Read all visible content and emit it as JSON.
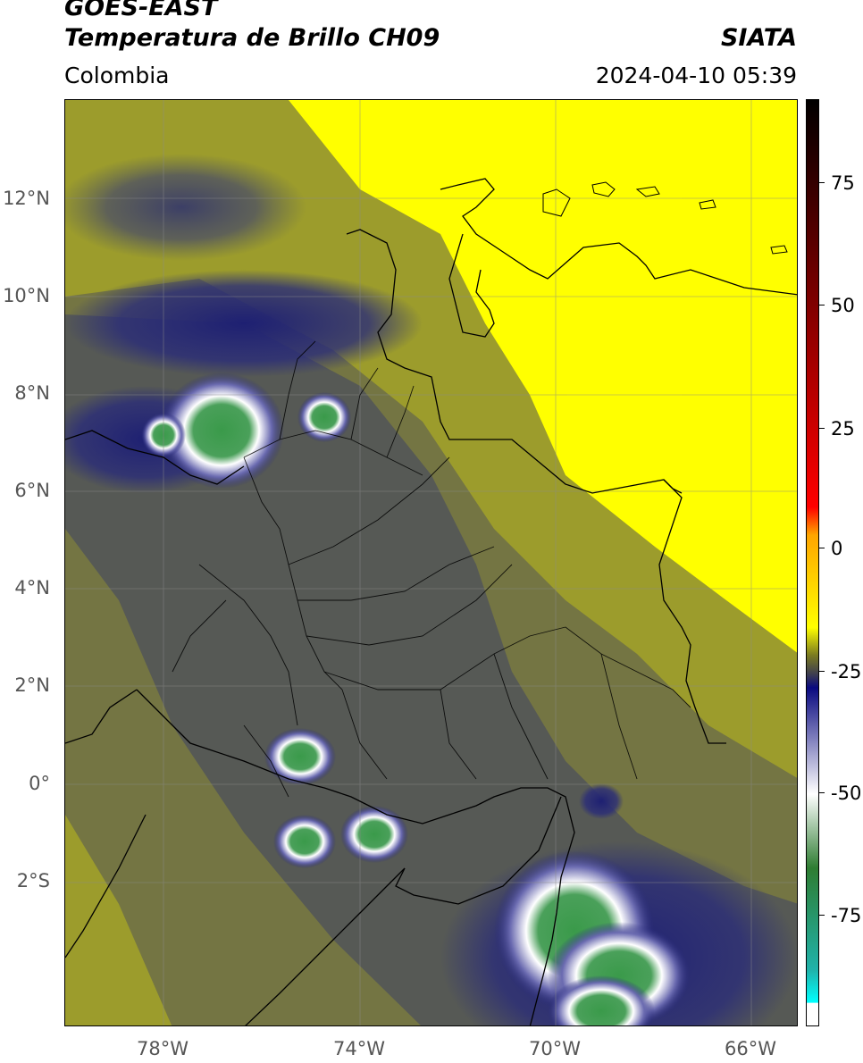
{
  "header": {
    "line1": "GOES-EAST",
    "line2": "Temperatura de Brillo CH09",
    "brand": "SIATA",
    "region": "Colombia",
    "datetime": "2024-04-10 05:39"
  },
  "map": {
    "lat_labels": [
      "12°N",
      "10°N",
      "8°N",
      "6°N",
      "4°N",
      "2°N",
      "0°",
      "2°S"
    ],
    "lon_labels": [
      "78°W",
      "74°W",
      "70°W",
      "66°W"
    ],
    "colors": {
      "warm": "#ffff00",
      "mid": "#a3a52a",
      "cool": "#5a5f55",
      "cold": "#26287a",
      "very_cold": "#ffffff",
      "coldest": "#3a9a4a"
    }
  },
  "colorbar": {
    "labels": [
      "75",
      "50",
      "25",
      "0",
      "-25",
      "-50",
      "-75"
    ],
    "colors": [
      "#000000",
      "#ff0000",
      "#ffa500",
      "#ffff00",
      "#7a7a20",
      "#3f3f4f",
      "#0a0a80",
      "#ffffff",
      "#2e7d32",
      "#20b2aa",
      "#00ffff"
    ]
  }
}
